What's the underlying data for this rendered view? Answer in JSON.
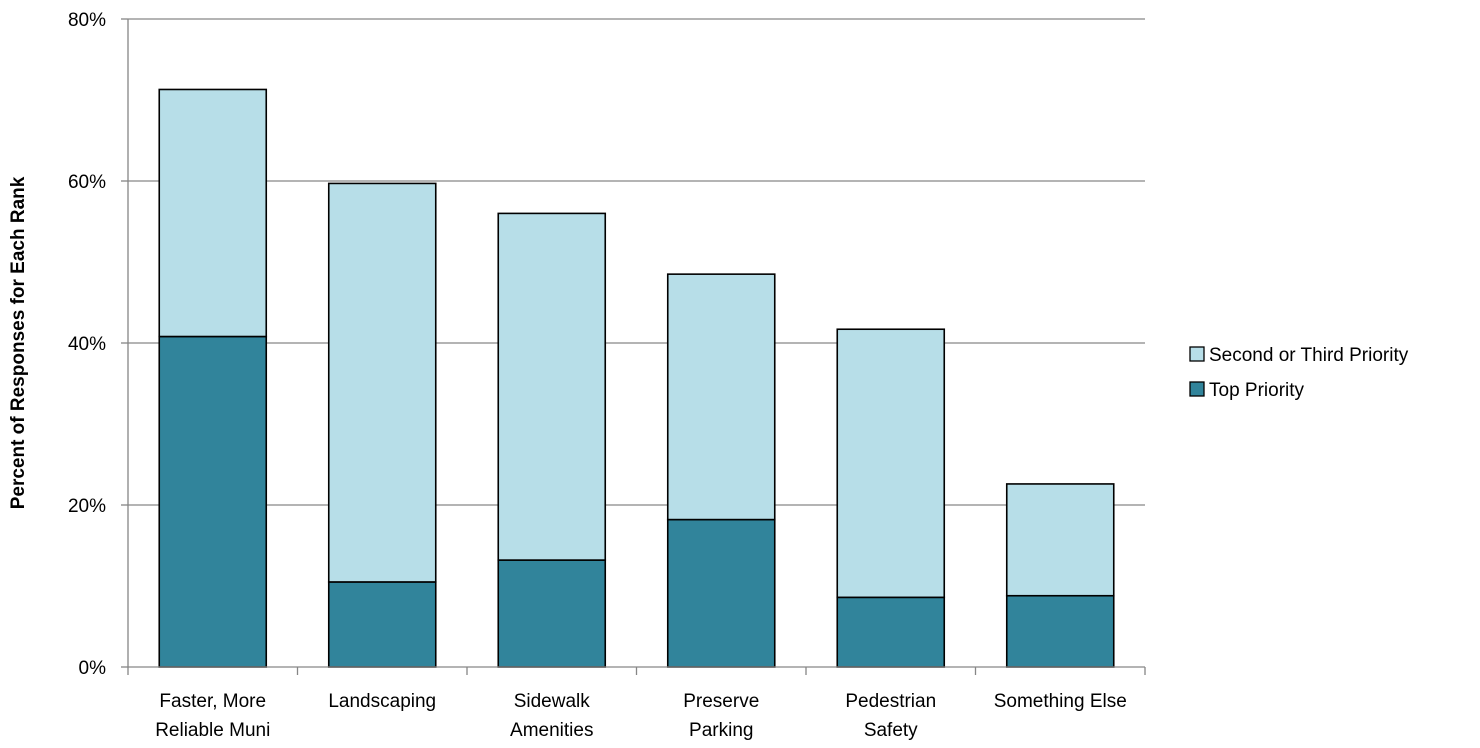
{
  "chart_data": {
    "type": "bar",
    "stacked": true,
    "title": "",
    "xlabel": "",
    "ylabel": "Percent of Responses for Each Rank",
    "ylim": [
      0,
      80
    ],
    "yticks": [
      0,
      20,
      40,
      60,
      80
    ],
    "ytick_labels": [
      "0%",
      "20%",
      "40%",
      "60%",
      "80%"
    ],
    "grid": true,
    "legend_position": "right",
    "categories": [
      [
        "Faster, More",
        "Reliable Muni"
      ],
      [
        "Landscaping"
      ],
      [
        "Sidewalk",
        "Amenities"
      ],
      [
        "Preserve",
        "Parking"
      ],
      [
        "Pedestrian",
        "Safety"
      ],
      [
        "Something Else"
      ]
    ],
    "series": [
      {
        "name": "Top Priority",
        "color": "#31849B",
        "values": [
          40.8,
          10.5,
          13.2,
          18.2,
          8.6,
          8.8
        ]
      },
      {
        "name": "Second or Third Priority",
        "color": "#B7DEE8",
        "values": [
          30.5,
          49.2,
          42.8,
          30.3,
          33.1,
          13.8
        ]
      }
    ],
    "legend_order": [
      1,
      0
    ]
  }
}
